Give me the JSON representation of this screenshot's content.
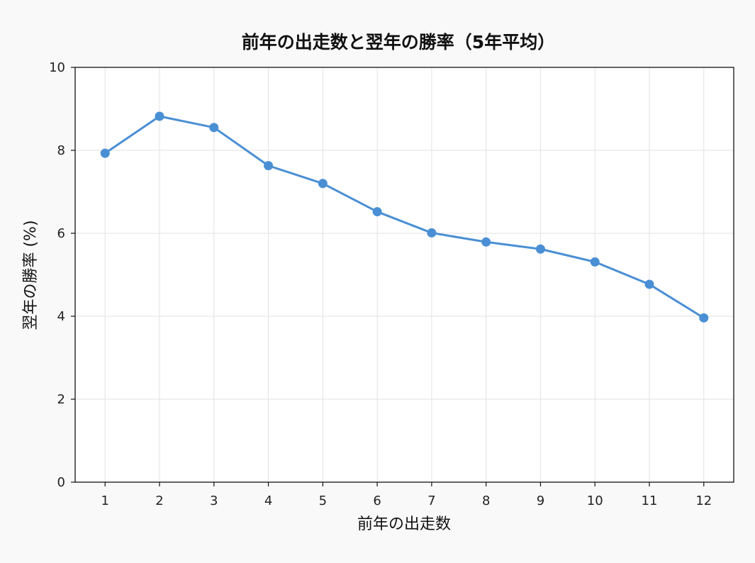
{
  "chart_data": {
    "type": "line",
    "title": "前年の出走数と翌年の勝率（5年平均）",
    "xlabel": "前年の出走数",
    "ylabel": "翌年の勝率 (%)",
    "x": [
      1,
      2,
      3,
      4,
      5,
      6,
      7,
      8,
      9,
      10,
      11,
      12
    ],
    "series": [
      {
        "values": [
          7.93,
          8.82,
          8.55,
          7.63,
          7.2,
          6.52,
          6.01,
          5.79,
          5.62,
          5.31,
          4.77,
          3.96
        ],
        "color": "#4a8fd4"
      }
    ],
    "xlim": [
      0.45,
      12.55
    ],
    "ylim": [
      0,
      10
    ],
    "yticks": [
      0,
      2,
      4,
      6,
      8,
      10
    ],
    "xticks": [
      1,
      2,
      3,
      4,
      5,
      6,
      7,
      8,
      9,
      10,
      11,
      12
    ],
    "grid": true,
    "legend": "none",
    "background": "#f9f9f9",
    "plot_background": "#ffffff"
  }
}
